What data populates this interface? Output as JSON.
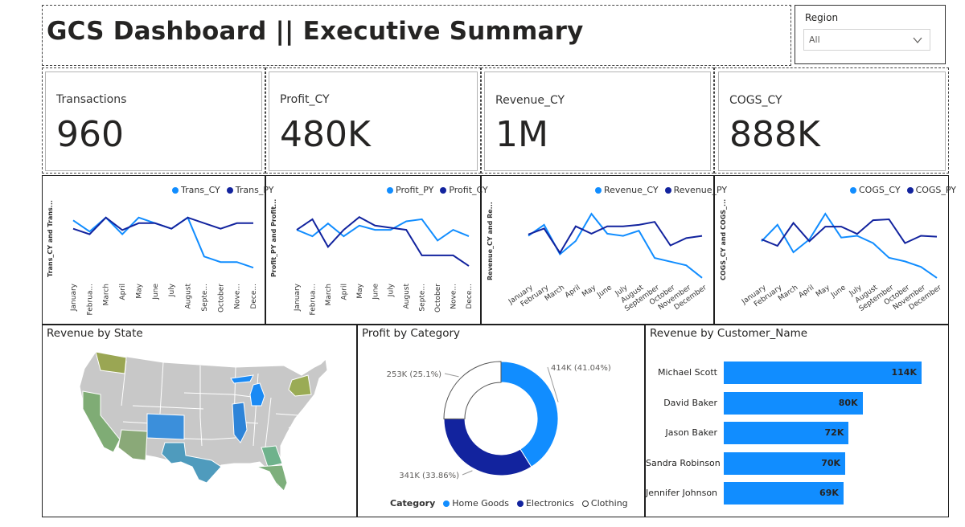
{
  "header": {
    "title": "GCS Dashboard || Executive Summary"
  },
  "slicer": {
    "label": "Region",
    "value": "All",
    "icon": "chevron-down-icon"
  },
  "kpis": [
    {
      "label": "Transactions",
      "value": "960"
    },
    {
      "label": "Profit_CY",
      "value": "480K"
    },
    {
      "label": "Revenue_CY",
      "value": "1M"
    },
    {
      "label": "COGS_CY",
      "value": "888K"
    }
  ],
  "colors": {
    "light_blue": "#118dff",
    "dark_blue": "#12239e",
    "border": "#1f1f1f",
    "clothing": "#ffffff"
  },
  "chart_data": [
    {
      "type": "line",
      "id": "trans",
      "ylabel": "Trans_CY and Trans...",
      "categories": [
        "January",
        "Februa...",
        "March",
        "April",
        "May",
        "June",
        "July",
        "August",
        "Septe...",
        "October",
        "Nove...",
        "Dece..."
      ],
      "series": [
        {
          "name": "Trans_CY",
          "color": "#118dff",
          "values": [
            98,
            90,
            100,
            88,
            100,
            96,
            92,
            100,
            72,
            68,
            68,
            64
          ]
        },
        {
          "name": "Trans_PY",
          "color": "#12239e",
          "values": [
            92,
            88,
            100,
            91,
            96,
            96,
            92,
            100,
            96,
            92,
            96,
            96
          ]
        }
      ],
      "ylim": [
        56,
        108
      ]
    },
    {
      "type": "line",
      "id": "profit",
      "ylabel": "Profit_PY and Profit...",
      "categories": [
        "January",
        "Februa...",
        "March",
        "April",
        "May",
        "June",
        "July",
        "August",
        "Septe...",
        "October",
        "Nove...",
        "Dece..."
      ],
      "series": [
        {
          "name": "Profit_PY",
          "color": "#118dff",
          "values": [
            47,
            44,
            50,
            44,
            49,
            47,
            47,
            51,
            52,
            42,
            47,
            44
          ]
        },
        {
          "name": "Profit_CY",
          "color": "#12239e",
          "values": [
            47,
            52,
            39,
            47,
            53,
            49,
            48,
            47,
            35,
            35,
            35,
            30
          ]
        }
      ],
      "ylim": [
        24,
        58
      ]
    },
    {
      "type": "line",
      "id": "revenue",
      "ylabel": "Revenue_CY and Re...",
      "categories": [
        "January",
        "February",
        "March",
        "April",
        "May",
        "June",
        "July",
        "August",
        "September",
        "October",
        "November",
        "December"
      ],
      "series": [
        {
          "name": "Revenue_CY",
          "color": "#118dff",
          "values": [
            95,
            110,
            70,
            88,
            125,
            98,
            95,
            102,
            65,
            60,
            55,
            38
          ]
        },
        {
          "name": "Revenue_PY",
          "color": "#12239e",
          "values": [
            97,
            105,
            72,
            108,
            98,
            108,
            108,
            110,
            114,
            82,
            92,
            95
          ]
        }
      ],
      "ylim": [
        28,
        135
      ]
    },
    {
      "type": "line",
      "id": "cogs",
      "ylabel": "COGS_CY and COGS_...",
      "categories": [
        "January",
        "February",
        "March",
        "April",
        "May",
        "June",
        "July",
        "August",
        "September",
        "October",
        "November",
        "December"
      ],
      "series": [
        {
          "name": "COGS_CY",
          "color": "#118dff",
          "values": [
            80,
            98,
            68,
            82,
            110,
            84,
            86,
            78,
            62,
            58,
            52,
            40
          ]
        },
        {
          "name": "COGS_PY",
          "color": "#12239e",
          "values": [
            82,
            75,
            100,
            80,
            96,
            96,
            88,
            103,
            104,
            78,
            86,
            85
          ]
        }
      ],
      "ylim": [
        32,
        118
      ]
    },
    {
      "type": "pie",
      "id": "profit-by-category",
      "title": "Profit by Category",
      "legend_title": "Category",
      "slices": [
        {
          "name": "Home Goods",
          "value": 414,
          "label": "414K (41.04%)",
          "color": "#118dff"
        },
        {
          "name": "Electronics",
          "value": 341,
          "label": "341K (33.86%)",
          "color": "#12239e"
        },
        {
          "name": "Clothing",
          "value": 253,
          "label": "253K (25.1%)",
          "color": "#ffffff"
        }
      ]
    },
    {
      "type": "bar",
      "id": "revenue-by-customer",
      "title": "Revenue by Customer_Name",
      "categories": [
        "Michael Scott",
        "David Baker",
        "Jason Baker",
        "Sandra Robinson",
        "Jennifer Johnson"
      ],
      "values": [
        114,
        80,
        72,
        70,
        69
      ],
      "labels": [
        "114K",
        "80K",
        "72K",
        "70K",
        "69K"
      ],
      "color": "#118dff"
    }
  ],
  "map": {
    "title": "Revenue by State",
    "highlights": [
      {
        "state": "Washington",
        "color": "#9aa653"
      },
      {
        "state": "California",
        "color": "#7fac75"
      },
      {
        "state": "Arizona",
        "color": "#8aa978"
      },
      {
        "state": "Colorado",
        "color": "#3b8fdb"
      },
      {
        "state": "Texas",
        "color": "#4f9bbd"
      },
      {
        "state": "Illinois",
        "color": "#2e84d8"
      },
      {
        "state": "Michigan",
        "color": "#1a8af4"
      },
      {
        "state": "New York",
        "color": "#9aab55"
      },
      {
        "state": "Georgia",
        "color": "#6fb28c"
      },
      {
        "state": "Florida",
        "color": "#7eaf7c"
      }
    ]
  }
}
